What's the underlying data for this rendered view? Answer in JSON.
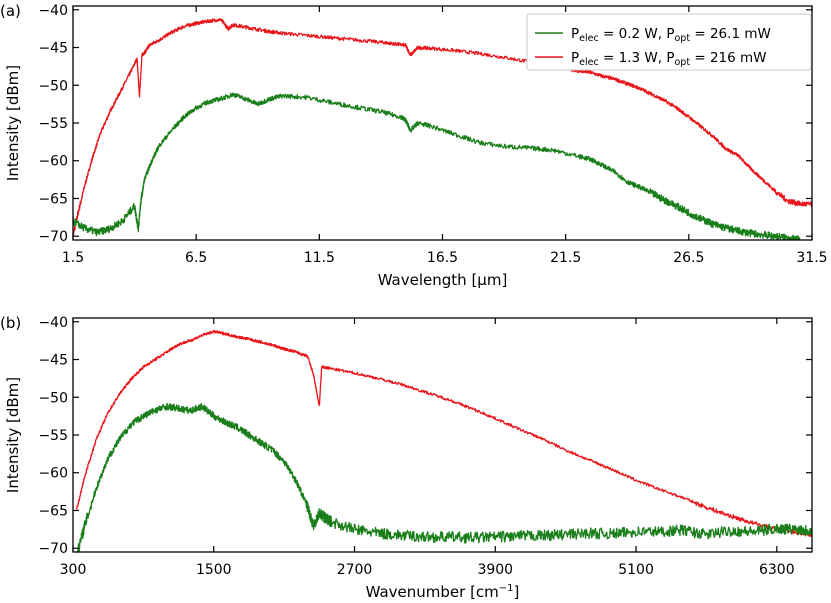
{
  "colors": {
    "green": "#1a7f1a",
    "red": "#e8151b",
    "axis": "#000000"
  },
  "legend": [
    {
      "p_elec": "0.2 W",
      "p_opt": "26.1 mW",
      "color": "#1a7f1a"
    },
    {
      "p_elec": "1.3 W",
      "p_opt": "216 mW",
      "color": "#e8151b"
    }
  ],
  "legend_text": {
    "p": "P",
    "elec": "elec",
    "opt": "opt",
    "eq": " = ",
    "sep": ", "
  },
  "chart_data": [
    {
      "type": "line",
      "panel": "(a)",
      "xlabel": "Wavelength [μm]",
      "ylabel": "Intensity [dBm]",
      "xlim": [
        1.5,
        31.5
      ],
      "ylim": [
        -70.5,
        -39.5
      ],
      "xticks": [
        1.5,
        6.5,
        11.5,
        16.5,
        21.5,
        26.5,
        31.5
      ],
      "xtick_labels": [
        "1.5",
        "6.5",
        "11.5",
        "16.5",
        "21.5",
        "26.5",
        "31.5"
      ],
      "yticks": [
        -70,
        -65,
        -60,
        -55,
        -50,
        -45,
        -40
      ],
      "ytick_labels": [
        "−70",
        "−65",
        "−60",
        "−55",
        "−50",
        "−45",
        "−40"
      ],
      "grid": false,
      "legend_position": "top-right",
      "series": [
        {
          "color": "#e8151b",
          "x": [
            1.5,
            1.7,
            2.0,
            2.3,
            2.6,
            3.0,
            3.4,
            3.8,
            4.1,
            4.2,
            4.3,
            4.45,
            4.6,
            5.0,
            5.5,
            6.0,
            6.5,
            7.0,
            7.5,
            7.8,
            8.0,
            8.5,
            9.0,
            9.5,
            10.0,
            11.0,
            12.0,
            13.0,
            14.0,
            14.5,
            15.0,
            15.2,
            15.5,
            16.0,
            17.0,
            18.0,
            19.0,
            20.0,
            21.0,
            22.0,
            22.5,
            23.0,
            23.5,
            24.0,
            24.5,
            25.0,
            25.5,
            26.0,
            26.5,
            27.0,
            27.5,
            28.0,
            28.5,
            29.0,
            29.5,
            30.0,
            30.5,
            31.0,
            31.5
          ],
          "y": [
            -70.0,
            -67.0,
            -63.0,
            -59.5,
            -56.5,
            -53.5,
            -51.0,
            -48.5,
            -46.5,
            -51.5,
            -46.0,
            -45.5,
            -44.7,
            -44.0,
            -43.0,
            -42.2,
            -41.8,
            -41.5,
            -41.3,
            -42.5,
            -42.0,
            -42.3,
            -42.6,
            -42.9,
            -43.1,
            -43.4,
            -43.7,
            -44.0,
            -44.3,
            -44.5,
            -44.7,
            -46.0,
            -45.0,
            -45.1,
            -45.4,
            -45.8,
            -46.3,
            -46.9,
            -47.5,
            -48.1,
            -48.3,
            -48.8,
            -49.2,
            -49.8,
            -50.4,
            -51.2,
            -52.0,
            -53.0,
            -54.2,
            -55.5,
            -56.8,
            -58.4,
            -59.3,
            -61.0,
            -62.5,
            -64.0,
            -65.3,
            -65.7,
            -65.8
          ]
        },
        {
          "color": "#1a7f1a",
          "x": [
            1.5,
            2.0,
            2.5,
            3.0,
            3.5,
            4.0,
            4.15,
            4.25,
            4.4,
            4.7,
            5.0,
            5.5,
            6.0,
            6.5,
            7.0,
            7.5,
            8.0,
            8.5,
            9.0,
            9.5,
            10.0,
            11.0,
            12.0,
            13.0,
            14.0,
            14.8,
            15.0,
            15.2,
            15.5,
            16.0,
            17.0,
            18.0,
            19.0,
            20.0,
            21.0,
            22.0,
            22.5,
            23.0,
            23.5,
            24.0,
            24.5,
            25.0,
            25.5,
            26.0,
            26.5,
            27.0,
            27.5,
            28.0,
            28.5,
            29.0,
            29.5,
            30.0,
            30.5,
            31.0
          ],
          "y": [
            -68.0,
            -69.0,
            -69.5,
            -69.0,
            -68.0,
            -66.0,
            -69.0,
            -65.5,
            -62.5,
            -60.0,
            -58.0,
            -56.0,
            -54.2,
            -53.0,
            -52.2,
            -51.8,
            -51.2,
            -51.8,
            -52.5,
            -51.8,
            -51.4,
            -51.6,
            -52.3,
            -52.9,
            -53.5,
            -54.2,
            -54.6,
            -56.0,
            -55.0,
            -55.4,
            -56.5,
            -57.6,
            -58.1,
            -58.3,
            -58.6,
            -59.4,
            -59.8,
            -60.6,
            -61.5,
            -62.8,
            -63.5,
            -64.3,
            -65.2,
            -66.0,
            -66.9,
            -67.7,
            -68.4,
            -68.9,
            -69.3,
            -69.6,
            -69.8,
            -70.0,
            -70.2,
            -70.5
          ]
        }
      ]
    },
    {
      "type": "line",
      "panel": "(b)",
      "xlabel": "Wavenumber [cm",
      "xlabel_sup": "−1",
      "xlabel_end": "]",
      "ylabel": "Intensity [dBm]",
      "xlim": [
        300,
        6600
      ],
      "ylim": [
        -70.5,
        -39.5
      ],
      "xticks": [
        300,
        1500,
        2700,
        3900,
        5100,
        6300
      ],
      "xtick_labels": [
        "300",
        "1500",
        "2700",
        "3900",
        "5100",
        "6300"
      ],
      "yticks": [
        -70,
        -65,
        -60,
        -55,
        -50,
        -45,
        -40
      ],
      "ytick_labels": [
        "−70",
        "−65",
        "−60",
        "−55",
        "−50",
        "−45",
        "−40"
      ],
      "grid": false,
      "series": [
        {
          "color": "#e8151b",
          "x": [
            330,
            400,
            500,
            600,
            700,
            800,
            900,
            1000,
            1100,
            1200,
            1300,
            1400,
            1500,
            1600,
            1700,
            1800,
            1900,
            2000,
            2100,
            2200,
            2300,
            2350,
            2400,
            2420,
            2500,
            2700,
            2900,
            3100,
            3300,
            3500,
            3700,
            3900,
            4100,
            4300,
            4500,
            4700,
            4900,
            5100,
            5300,
            5500,
            5700,
            5900,
            6100,
            6300,
            6500,
            6600
          ],
          "y": [
            -65.0,
            -60.5,
            -55.5,
            -52.0,
            -49.5,
            -47.5,
            -46.0,
            -45.0,
            -44.0,
            -43.0,
            -42.5,
            -41.8,
            -41.3,
            -41.6,
            -42.0,
            -42.3,
            -42.7,
            -43.1,
            -43.6,
            -44.0,
            -44.6,
            -47.0,
            -51.2,
            -46.0,
            -46.2,
            -46.8,
            -47.5,
            -48.3,
            -49.3,
            -50.3,
            -51.5,
            -52.8,
            -54.2,
            -55.5,
            -57.0,
            -58.3,
            -59.6,
            -61.0,
            -62.2,
            -63.3,
            -64.6,
            -65.7,
            -66.7,
            -67.5,
            -68.0,
            -68.2
          ]
        },
        {
          "color": "#1a7f1a",
          "x": [
            330,
            400,
            500,
            600,
            700,
            800,
            900,
            1000,
            1100,
            1200,
            1300,
            1400,
            1500,
            1600,
            1700,
            1800,
            1900,
            2000,
            2100,
            2200,
            2300,
            2350,
            2400,
            2450,
            2500,
            2700,
            2900,
            3100,
            3300,
            3500,
            3700,
            3900,
            4100,
            4300,
            4500,
            4700,
            4900,
            5100,
            5300,
            5500,
            5700,
            5900,
            6100,
            6300,
            6500,
            6600
          ],
          "y": [
            -71.0,
            -67.0,
            -62.0,
            -58.0,
            -55.5,
            -53.5,
            -52.5,
            -51.7,
            -51.2,
            -51.5,
            -51.8,
            -51.2,
            -52.5,
            -53.3,
            -54.0,
            -55.0,
            -56.0,
            -57.0,
            -58.5,
            -61.0,
            -64.5,
            -67.0,
            -65.3,
            -66.0,
            -66.5,
            -67.5,
            -68.0,
            -68.3,
            -68.5,
            -68.5,
            -68.6,
            -68.5,
            -68.4,
            -68.3,
            -68.2,
            -68.0,
            -68.1,
            -67.8,
            -67.8,
            -67.6,
            -68.2,
            -67.7,
            -67.8,
            -67.4,
            -67.5,
            -67.7
          ]
        }
      ]
    }
  ]
}
